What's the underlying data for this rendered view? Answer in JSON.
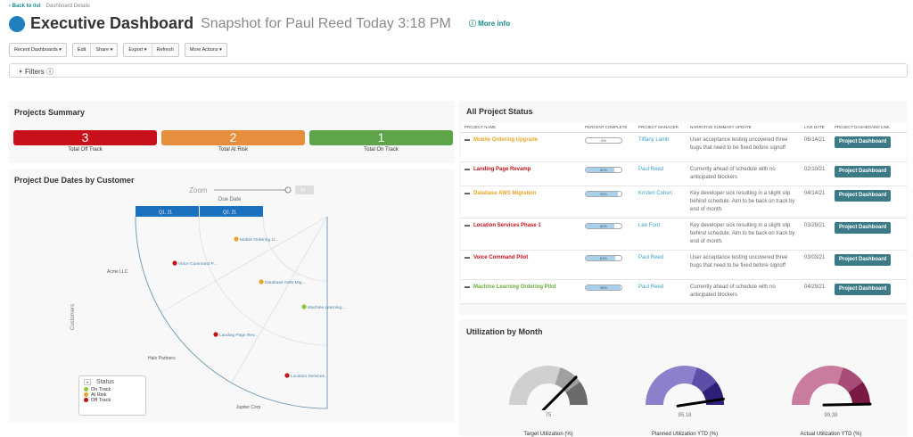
{
  "breadcrumb": {
    "back": "‹ Back to list",
    "current": "Dashboard Details"
  },
  "header": {
    "title": "Executive Dashboard",
    "subtitle": "Snapshot for Paul Reed Today 3:18 PM",
    "more_info": "ⓘ More info"
  },
  "toolbar": {
    "recent": "Recent Dashboards ▾",
    "edit": "Edit",
    "share": "Share ▾",
    "export": "Export ▾",
    "refresh": "Refresh",
    "more": "More Actions ▾"
  },
  "filters": {
    "label": "‣  Filters ⓘ"
  },
  "summary": {
    "title": "Projects Summary",
    "items": [
      {
        "value": "3",
        "label": "Total Off Track",
        "color": "#c8101a"
      },
      {
        "value": "2",
        "label": "Total At Risk",
        "color": "#e58e3e"
      },
      {
        "value": "1",
        "label": "Total On Track",
        "color": "#5ea44b"
      }
    ]
  },
  "due_chart": {
    "title": "Project Due Dates by Customer",
    "zoom": "Zoom",
    "fit": "Fit",
    "axis_title": "Due Date",
    "quarters": [
      "Q1, 21",
      "Q2, 21"
    ],
    "y_title": "Customers",
    "customers": [
      "Acme LLC",
      "Halo Partners",
      "Jupiter Corp"
    ],
    "points": [
      "Mobile Ordering U...",
      "Voice Command P...",
      "Database AWS Mig...",
      "Machine Learning...",
      "Landing Page Rev...",
      "Location Services..."
    ],
    "legend": {
      "title": "Status",
      "items": [
        "On Track",
        "At Risk",
        "Off Track"
      ]
    }
  },
  "status": {
    "title": "All Project Status",
    "columns": [
      "PROJECT NAME",
      "PERCENT COMPLETE",
      "PROJECT MANAGER",
      "NARRATIVE SUMMARY UPDATE",
      "LIVE DATE",
      "PROJECT DASHBOARD LINK"
    ],
    "rows": [
      {
        "name": "Mobile Ordering Upgrade",
        "color": "#e8a52a",
        "pct": "0%",
        "pct_value": 0,
        "pm": "Tiffany Lamb",
        "summary": "User acceptance testing uncovered three bugs that need to be fixed before signoff",
        "date": "06/14/21",
        "link": "Project Dashboard"
      },
      {
        "name": "Landing Page Revamp",
        "color": "#c0141c",
        "pct": "80%",
        "pct_value": 80,
        "pm": "Paul Reed",
        "summary": "Currently ahead of schedule with no anticipated blockers",
        "date": "02/10/21",
        "link": "Project Dashboard"
      },
      {
        "name": "Database AWS Migration",
        "color": "#e8a52a",
        "pct": "90%",
        "pct_value": 90,
        "pm": "Kristen Cohen",
        "summary": "Key developer sick resulting in a slight slip behind schedule. Aim to be back on track by end of month.",
        "date": "04/14/21",
        "link": "Project Dashboard"
      },
      {
        "name": "Location Services Phase 1",
        "color": "#c0141c",
        "pct": "80%",
        "pct_value": 80,
        "pm": "Lee Ford",
        "summary": "Key developer sick resulting in a slight slip behind schedule. Aim to be back on track by end of month.",
        "date": "03/29/21",
        "link": "Project Dashboard"
      },
      {
        "name": "Voice Command Pilot",
        "color": "#c0141c",
        "pct": "83%",
        "pct_value": 83,
        "pm": "Paul Reed",
        "summary": "User acceptance testing uncovered three bugs that need to be fixed before signoff",
        "date": "03/03/21",
        "link": "Project Dashboard"
      },
      {
        "name": "Machine Learning Ordering Pilot",
        "color": "#6aaa3a",
        "pct": "98%",
        "pct_value": 98,
        "pm": "Paul Reed",
        "summary": "Currently ahead of schedule with no anticipated blockers",
        "date": "04/29/21",
        "link": "Project Dashboard"
      }
    ]
  },
  "utilization": {
    "title": "Utilization by Month",
    "gauges": [
      {
        "value": "75",
        "num": 75,
        "label": "Target Utilization (%)",
        "colors": [
          "#d0d0d0",
          "#a0a0a0",
          "#6a6a6a"
        ]
      },
      {
        "value": "95.18",
        "num": 95.18,
        "label": "Planned Utilization YTD (%)",
        "colors": [
          "#8c7fcc",
          "#5e4ea8",
          "#2e1f78"
        ]
      },
      {
        "value": "99.38",
        "num": 99.38,
        "label": "Actual Utilization YTD (%)",
        "colors": [
          "#c97c9e",
          "#a74c76",
          "#7a1a44"
        ]
      }
    ]
  }
}
